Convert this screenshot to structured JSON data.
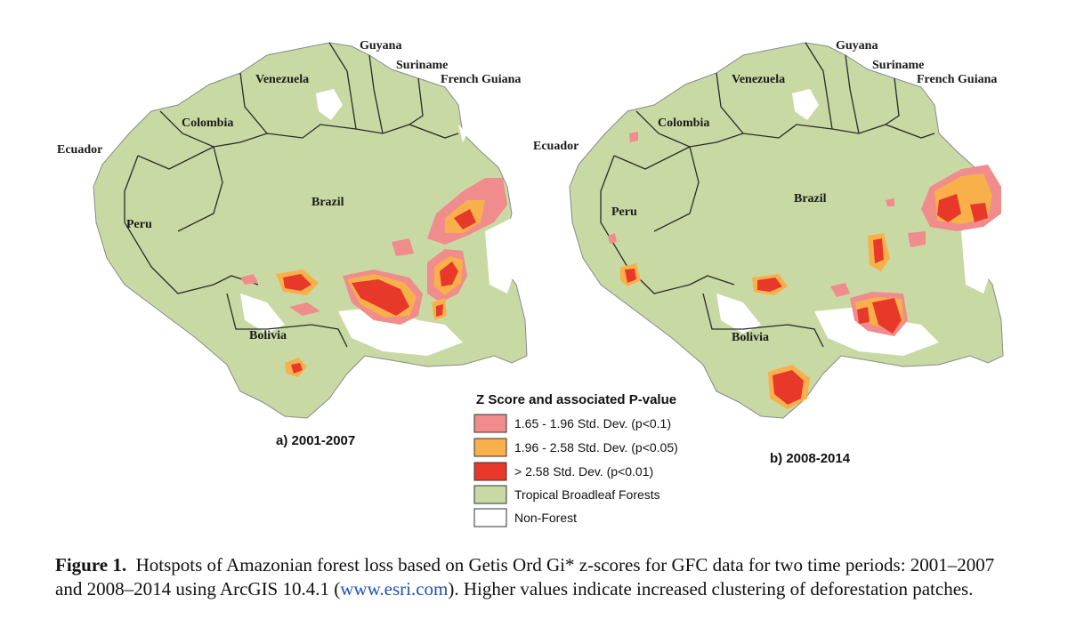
{
  "colors": {
    "forest": "#c9d9a4",
    "non_forest": "#ffffff",
    "hotspot_90": "#f08c8c",
    "hotspot_95": "#f7b04a",
    "hotspot_99": "#e8382a",
    "border": "#2a2a2a"
  },
  "panels": [
    {
      "title": "a) 2001-2007",
      "labels": {
        "guyana": "Guyana",
        "suriname": "Suriname",
        "french_guiana": "French Guiana",
        "venezuela": "Venezuela",
        "colombia": "Colombia",
        "ecuador": "Ecuador",
        "peru": "Peru",
        "brazil": "Brazil",
        "bolivia": "Bolivia"
      }
    },
    {
      "title": "b) 2008-2014",
      "labels": {
        "guyana": "Guyana",
        "suriname": "Suriname",
        "french_guiana": "French Guiana",
        "venezuela": "Venezuela",
        "colombia": "Colombia",
        "ecuador": "Ecuador",
        "peru": "Peru",
        "brazil": "Brazil",
        "bolivia": "Bolivia"
      }
    }
  ],
  "legend": {
    "title": "Z Score and associated P-value",
    "items": [
      {
        "label": "1.65 - 1.96 Std. Dev. (p<0.1)",
        "color": "#f08c8c"
      },
      {
        "label": "1.96 - 2.58 Std. Dev. (p<0.05)",
        "color": "#f7b04a"
      },
      {
        "label": "> 2.58 Std. Dev. (p<0.01)",
        "color": "#e8382a"
      },
      {
        "label": "Tropical Broadleaf Forests",
        "color": "#c9d9a4"
      },
      {
        "label": "Non-Forest",
        "color": "#ffffff"
      }
    ]
  },
  "caption": {
    "label": "Figure 1.",
    "text_before_link": "Hotspots of Amazonian forest loss based on Getis Ord Gi* z-scores for GFC data for two time periods: 2001–2007 and 2008–2014 using ArcGIS 10.4.1 (",
    "link": "www.esri.com",
    "text_after_link": "). Higher values indicate increased clustering of deforestation patches."
  }
}
